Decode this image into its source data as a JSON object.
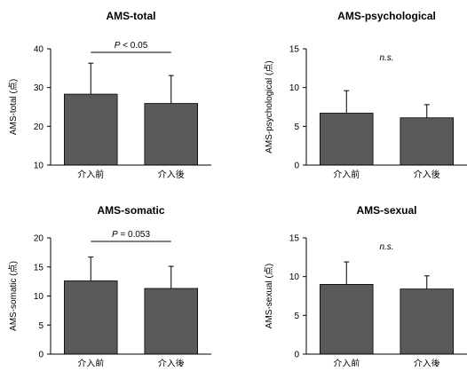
{
  "chart_data": [
    {
      "type": "bar",
      "title": "AMS-total",
      "ylabel": "AMS-total (点)",
      "categories": [
        "介入前",
        "介入後"
      ],
      "values": [
        28.3,
        25.9
      ],
      "errors": [
        8.0,
        7.2
      ],
      "ylim": [
        10,
        40
      ],
      "yticks": [
        10,
        20,
        30,
        40
      ],
      "annotation": {
        "prefix": "P",
        "text": " < 0.05",
        "bracket": true
      },
      "grid": false,
      "bar_color": "#595959"
    },
    {
      "type": "bar",
      "title": "AMS-psychological",
      "ylabel": "AMS-psychological (点)",
      "categories": [
        "介入前",
        "介入後"
      ],
      "values": [
        6.7,
        6.1
      ],
      "errors": [
        2.9,
        1.7
      ],
      "ylim": [
        0,
        15
      ],
      "yticks": [
        0,
        5,
        10,
        15
      ],
      "annotation": {
        "prefix": "",
        "text": "n.s.",
        "bracket": false
      },
      "grid": false,
      "bar_color": "#595959"
    },
    {
      "type": "bar",
      "title": "AMS-somatic",
      "ylabel": "AMS-somatic (点)",
      "categories": [
        "介入前",
        "介入後"
      ],
      "values": [
        12.6,
        11.3
      ],
      "errors": [
        4.1,
        3.8
      ],
      "ylim": [
        0,
        20
      ],
      "yticks": [
        0,
        5,
        10,
        15,
        20
      ],
      "annotation": {
        "prefix": "P",
        "text": " = 0.053",
        "bracket": true
      },
      "grid": false,
      "bar_color": "#595959"
    },
    {
      "type": "bar",
      "title": "AMS-sexual",
      "ylabel": "AMS-sexual (点)",
      "categories": [
        "介入前",
        "介入後"
      ],
      "values": [
        9.0,
        8.4
      ],
      "errors": [
        2.9,
        1.7
      ],
      "ylim": [
        0,
        15
      ],
      "yticks": [
        0,
        5,
        10,
        15
      ],
      "annotation": {
        "prefix": "",
        "text": "n.s.",
        "bracket": false
      },
      "grid": false,
      "bar_color": "#595959"
    }
  ]
}
